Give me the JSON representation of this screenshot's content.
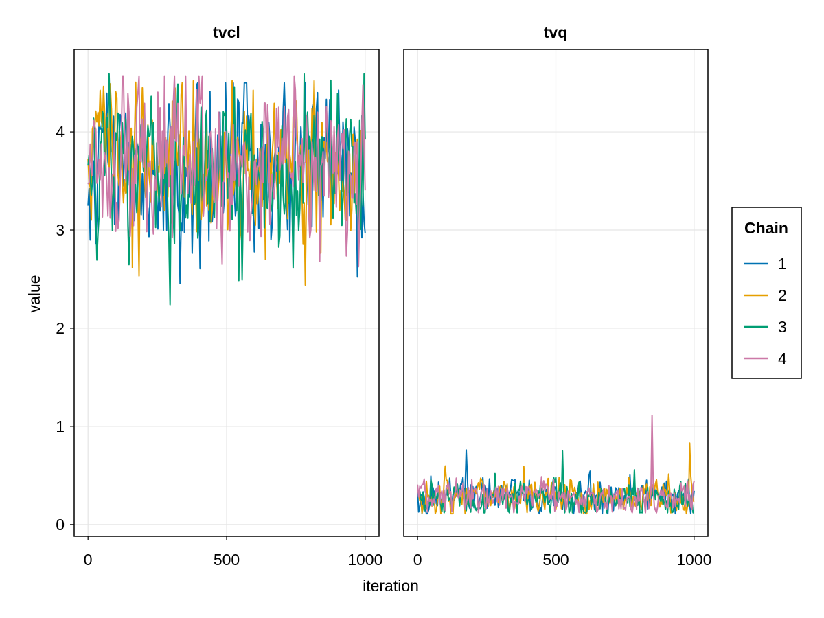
{
  "colors": {
    "chain1": "#0072b2",
    "chain2": "#e69f00",
    "chain3": "#009e73",
    "chain4": "#cc79a7",
    "grid": "#e5e5e5",
    "frame": "#000000"
  },
  "legend": {
    "title": "Chain",
    "items": [
      "1",
      "2",
      "3",
      "4"
    ],
    "placement": "right"
  },
  "chart_data": {
    "type": "line",
    "xlabel": "iteration",
    "ylabel": "value",
    "shared_y": true,
    "ylim": [
      -0.12,
      4.84
    ],
    "yticks": [
      "0",
      "1",
      "2",
      "3",
      "4"
    ],
    "xlim": [
      -50,
      1050
    ],
    "xticks": [
      "0",
      "500",
      "1000"
    ],
    "grid": true,
    "n_iterations": 1000,
    "panels": [
      {
        "title": "tvcl",
        "series": [
          {
            "name": "1",
            "mean": 3.65,
            "spread": 0.38,
            "min": 2.43,
            "max": 4.5
          },
          {
            "name": "2",
            "mean": 3.62,
            "spread": 0.4,
            "min": 2.3,
            "max": 4.52
          },
          {
            "name": "3",
            "mean": 3.64,
            "spread": 0.39,
            "min": 2.17,
            "max": 4.59
          },
          {
            "name": "4",
            "mean": 3.62,
            "spread": 0.38,
            "min": 2.16,
            "max": 4.57
          }
        ]
      },
      {
        "title": "tvq",
        "series": [
          {
            "name": "1",
            "mean": 0.29,
            "spread": 0.09,
            "min": 0.11,
            "max": 0.76
          },
          {
            "name": "2",
            "mean": 0.29,
            "spread": 0.09,
            "min": 0.11,
            "max": 0.83
          },
          {
            "name": "3",
            "mean": 0.28,
            "spread": 0.09,
            "min": 0.12,
            "max": 0.75
          },
          {
            "name": "4",
            "mean": 0.28,
            "spread": 0.08,
            "min": 0.12,
            "max": 1.11
          }
        ]
      }
    ]
  }
}
